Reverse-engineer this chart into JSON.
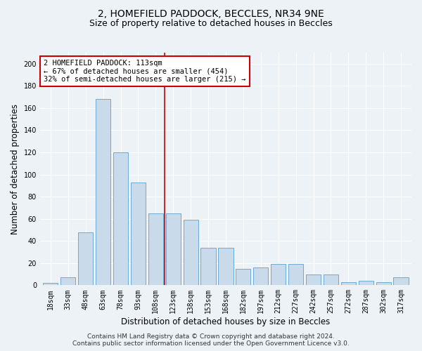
{
  "title_line1": "2, HOMEFIELD PADDOCK, BECCLES, NR34 9NE",
  "title_line2": "Size of property relative to detached houses in Beccles",
  "xlabel": "Distribution of detached houses by size in Beccles",
  "ylabel": "Number of detached properties",
  "bar_color": "#c9daea",
  "bar_edge_color": "#6aaad4",
  "categories": [
    "18sqm",
    "33sqm",
    "48sqm",
    "63sqm",
    "78sqm",
    "93sqm",
    "108sqm",
    "123sqm",
    "138sqm",
    "153sqm",
    "168sqm",
    "182sqm",
    "197sqm",
    "212sqm",
    "227sqm",
    "242sqm",
    "257sqm",
    "272sqm",
    "287sqm",
    "302sqm",
    "317sqm"
  ],
  "values": [
    2,
    7,
    48,
    168,
    120,
    93,
    65,
    65,
    59,
    34,
    34,
    15,
    16,
    19,
    19,
    10,
    10,
    3,
    4,
    3,
    7
  ],
  "ylim": [
    0,
    210
  ],
  "yticks": [
    0,
    20,
    40,
    60,
    80,
    100,
    120,
    140,
    160,
    180,
    200
  ],
  "annotation_text_line1": "2 HOMEFIELD PADDOCK: 113sqm",
  "annotation_text_line2": "← 67% of detached houses are smaller (454)",
  "annotation_text_line3": "32% of semi-detached houses are larger (215) →",
  "annotation_box_color": "#ffffff",
  "annotation_box_edge_color": "#cc0000",
  "marker_line_color": "#cc0000",
  "marker_bin_index": 6,
  "footer_line1": "Contains HM Land Registry data © Crown copyright and database right 2024.",
  "footer_line2": "Contains public sector information licensed under the Open Government Licence v3.0.",
  "background_color": "#edf2f7",
  "grid_color": "#ffffff",
  "title_fontsize": 10,
  "subtitle_fontsize": 9,
  "axis_label_fontsize": 8.5,
  "tick_fontsize": 7,
  "footer_fontsize": 6.5,
  "annotation_fontsize": 7.5
}
